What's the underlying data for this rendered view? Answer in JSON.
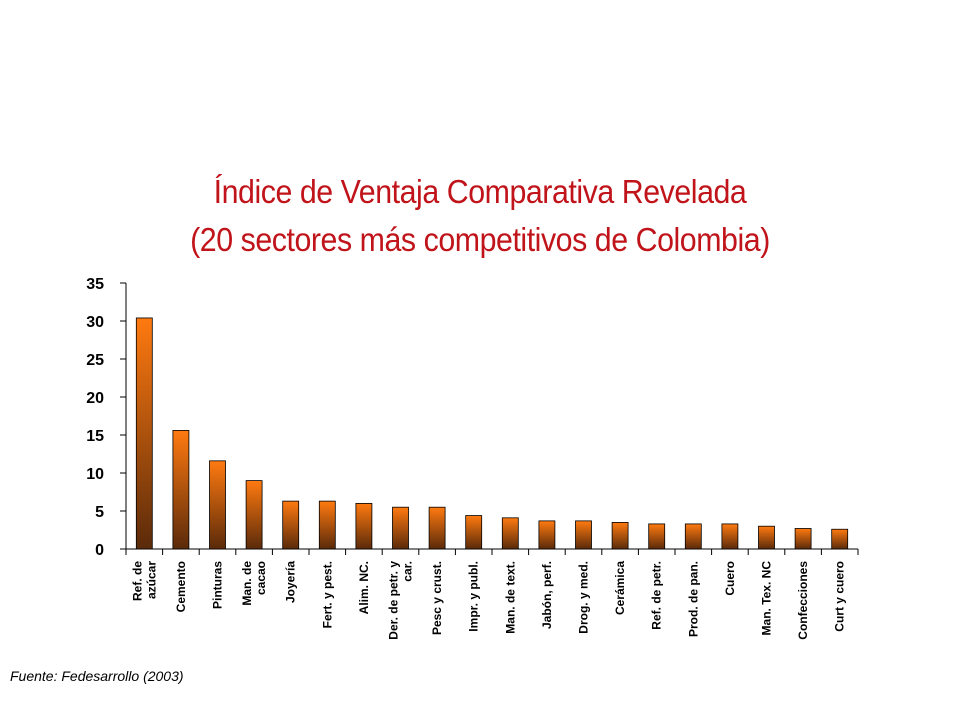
{
  "chart_data": {
    "type": "bar",
    "title_line1": "Índice de Ventaja Comparativa Revelada",
    "title_line2": "(20 sectores más competitivos de Colombia)",
    "source": "Fuente: Fedesarrollo (2003)",
    "ylim": [
      0,
      35
    ],
    "yticks": [
      "0",
      "5",
      "10",
      "15",
      "20",
      "25",
      "30",
      "35"
    ],
    "categories": [
      [
        "Ref. de",
        "azúcar"
      ],
      [
        "Cemento"
      ],
      [
        "Pinturas"
      ],
      [
        "Man. de",
        "cacao"
      ],
      [
        "Joyería"
      ],
      [
        "Fert. y pest."
      ],
      [
        "Alim. NC."
      ],
      [
        "Der. de petr. y",
        "car."
      ],
      [
        "Pesc y crust."
      ],
      [
        "Impr. y publ."
      ],
      [
        "Man. de text."
      ],
      [
        "Jabón, perf."
      ],
      [
        "Drog. y med."
      ],
      [
        "Cerámica"
      ],
      [
        "Ref. de petr."
      ],
      [
        "Prod. de pan."
      ],
      [
        "Cuero"
      ],
      [
        "Man. Tex. NC"
      ],
      [
        "Confecciones"
      ],
      [
        "Curt y cuero"
      ]
    ],
    "values": [
      30.4,
      15.6,
      11.6,
      9.0,
      6.3,
      6.3,
      6.0,
      5.5,
      5.5,
      4.4,
      4.1,
      3.7,
      3.7,
      3.5,
      3.3,
      3.3,
      3.3,
      3.0,
      2.7,
      2.6
    ],
    "bar_gradient": [
      "#ff7a10",
      "#5a2a0a"
    ],
    "grid": false,
    "legend": "none"
  }
}
